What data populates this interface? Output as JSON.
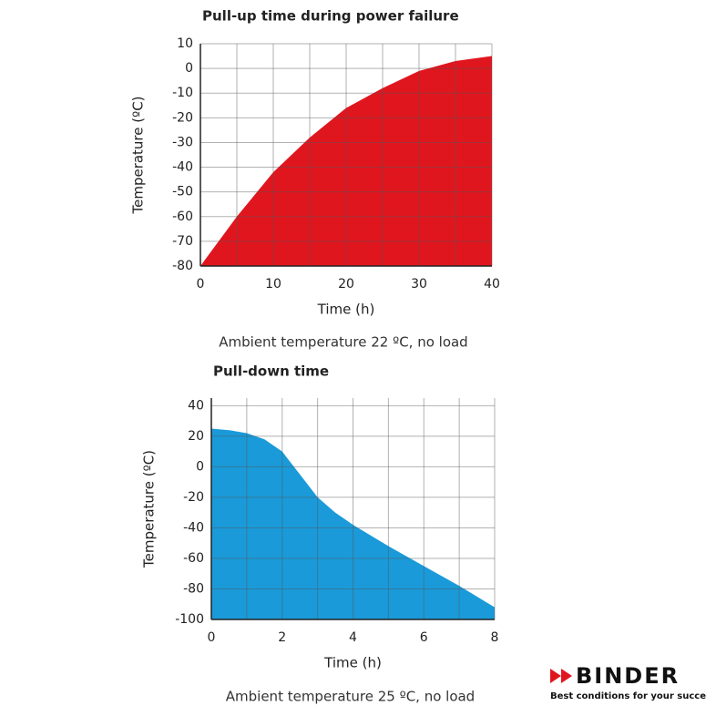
{
  "chart_data": [
    {
      "type": "area",
      "title": "Pull-up time during power failure",
      "x_label": "Time (h)",
      "y_label": "Temperature (ºC)",
      "caption": "Ambient temperature 22 ºC, no load",
      "x": [
        0,
        2,
        5,
        10,
        15,
        20,
        25,
        30,
        35,
        40
      ],
      "series": [
        {
          "name": "Pull-up",
          "color": "#e0161f",
          "values": [
            -80,
            -72,
            -60,
            -42,
            -28,
            -16,
            -8,
            -1,
            3,
            5
          ]
        }
      ],
      "xlim": [
        0,
        40
      ],
      "xticks": [
        0,
        10,
        20,
        30,
        40
      ],
      "x_minor_grid": [
        5,
        15,
        25,
        35
      ],
      "ylim": [
        -80,
        10
      ],
      "yticks": [
        -80,
        -70,
        -60,
        -50,
        -40,
        -30,
        -20,
        -10,
        0,
        10
      ],
      "grid": true
    },
    {
      "type": "area",
      "title": "Pull-down time",
      "x_label": "Time (h)",
      "y_label": "Temperature (ºC)",
      "caption": "Ambient temperature 25 ºC, no load",
      "x": [
        0,
        0.5,
        1,
        1.5,
        2,
        2.5,
        3,
        3.5,
        4,
        5,
        6,
        7,
        8
      ],
      "series": [
        {
          "name": "Pull-down",
          "color": "#1a9ad9",
          "values": [
            25,
            24,
            22,
            18,
            10,
            -5,
            -20,
            -30,
            -38,
            -52,
            -65,
            -78,
            -92
          ]
        }
      ],
      "xlim": [
        0,
        8
      ],
      "xticks": [
        0,
        2,
        4,
        6,
        8
      ],
      "x_minor_grid": [
        1,
        3,
        5,
        7
      ],
      "ylim": [
        -100,
        45
      ],
      "yticks": [
        -100,
        -80,
        -60,
        -40,
        -20,
        0,
        20,
        40
      ],
      "grid": true
    }
  ],
  "logo": {
    "name": "BINDER",
    "tagline": "Best conditions for your success"
  }
}
